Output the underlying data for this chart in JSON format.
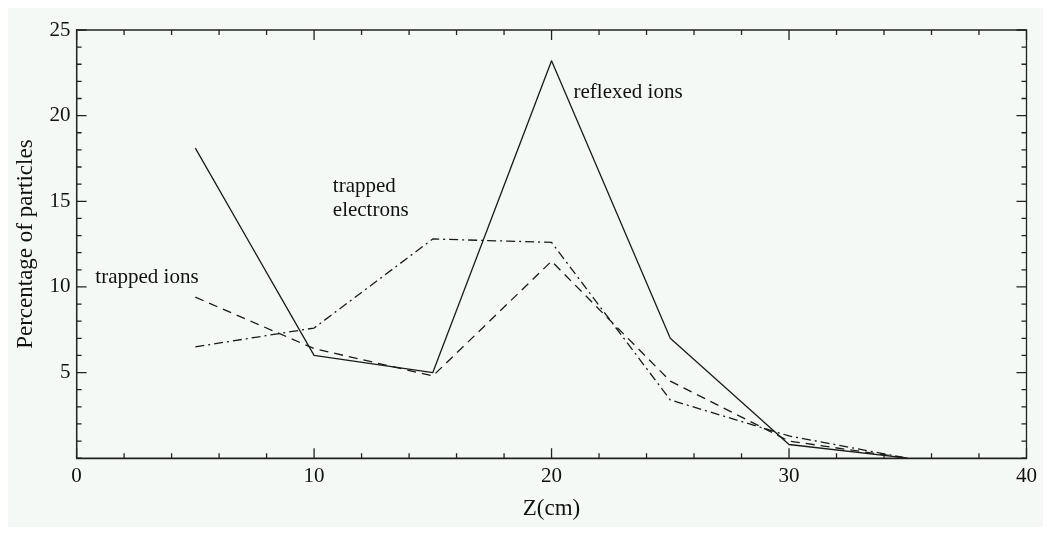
{
  "chart_data": {
    "type": "line",
    "xlabel": "Z(cm)",
    "ylabel": "Percentage of particles",
    "x": [
      5,
      10,
      15,
      20,
      25,
      30,
      35
    ],
    "series": [
      {
        "name": "reflexed ions",
        "color": "#1a1a1a",
        "line_style": "solid",
        "values": [
          18.1,
          6.0,
          5.0,
          23.2,
          7.0,
          0.8,
          0
        ]
      },
      {
        "name": "trapped ions",
        "color": "#1a1a1a",
        "line_style": "dashed",
        "values": [
          9.4,
          6.4,
          4.8,
          11.5,
          4.5,
          1.0,
          0
        ]
      },
      {
        "name": "trapped\nelectrons",
        "color": "#1a1a1a",
        "line_style": "dashdot",
        "values": [
          6.5,
          7.6,
          12.8,
          12.6,
          3.4,
          1.3,
          0
        ]
      }
    ],
    "xlim": [
      0,
      40
    ],
    "xticks": [
      0,
      {
        "value": 2,
        "label": null
      },
      {
        "value": 4,
        "label": null
      },
      {
        "value": 6,
        "label": null
      },
      {
        "value": 8,
        "label": null
      },
      10,
      {
        "value": 12,
        "label": null
      },
      {
        "value": 14,
        "label": null
      },
      {
        "value": 16,
        "label": null
      },
      {
        "value": 18,
        "label": null
      },
      20,
      {
        "value": 22,
        "label": null
      },
      {
        "value": 24,
        "label": null
      },
      {
        "value": 26,
        "label": null
      },
      {
        "value": 28,
        "label": null
      },
      30,
      {
        "value": 32,
        "label": null
      },
      {
        "value": 34,
        "label": null
      },
      {
        "value": 36,
        "label": null
      },
      {
        "value": 38,
        "label": null
      },
      40
    ],
    "ylim": [
      0,
      25
    ],
    "yticks": [
      {
        "value": 0,
        "label": null
      },
      {
        "value": 1,
        "label": null
      },
      {
        "value": 2,
        "label": null
      },
      {
        "value": 3,
        "label": null
      },
      {
        "value": 4,
        "label": null
      },
      5,
      {
        "value": 6,
        "label": null
      },
      {
        "value": 7,
        "label": null
      },
      {
        "value": 8,
        "label": null
      },
      {
        "value": 9,
        "label": null
      },
      10,
      {
        "value": 11,
        "label": null
      },
      {
        "value": 12,
        "label": null
      },
      {
        "value": 13,
        "label": null
      },
      {
        "value": 14,
        "label": null
      },
      15,
      {
        "value": 16,
        "label": null
      },
      {
        "value": 17,
        "label": null
      },
      {
        "value": 18,
        "label": null
      },
      {
        "value": 19,
        "label": null
      },
      20,
      {
        "value": 21,
        "label": null
      },
      {
        "value": 22,
        "label": null
      },
      {
        "value": 23,
        "label": null
      },
      {
        "value": 24,
        "label": null
      },
      25
    ],
    "grid": false,
    "legend": false,
    "marker": "none"
  }
}
